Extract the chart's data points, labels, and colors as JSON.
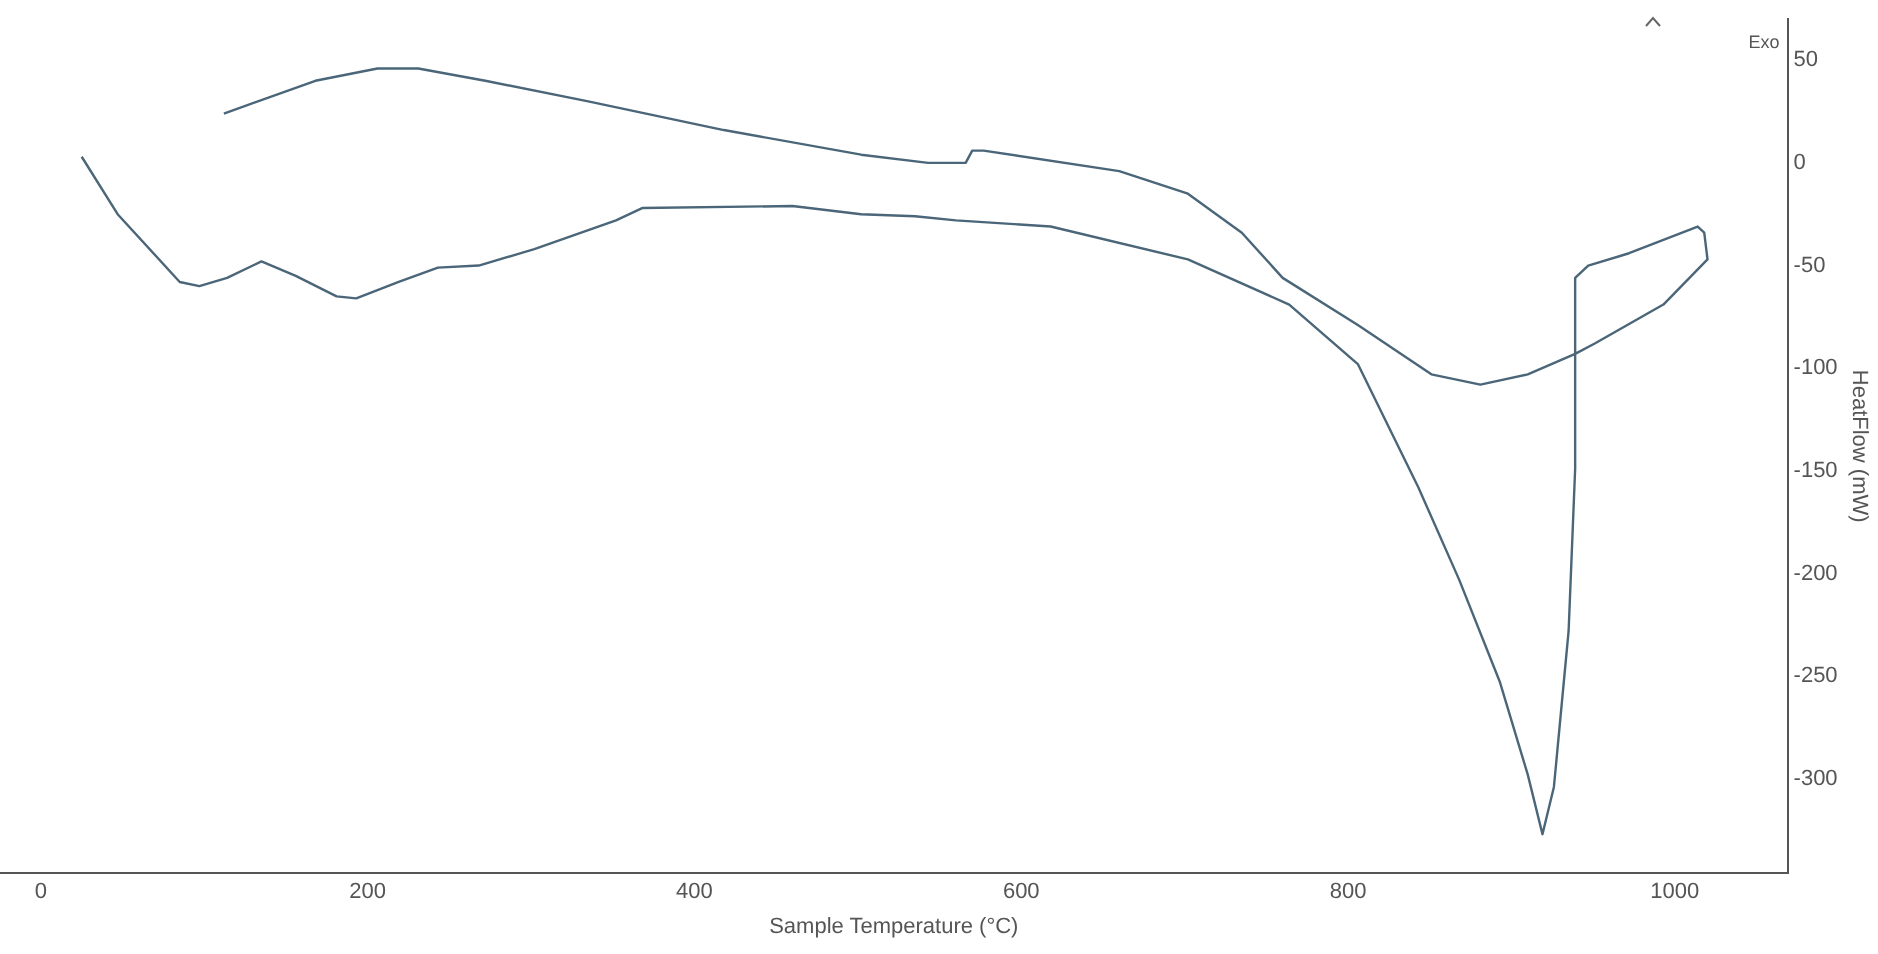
{
  "chart_data": {
    "type": "line",
    "xlabel": "Sample Temperature (°C)",
    "ylabel": "HeatFlow (mW)",
    "annotations": [
      "Exo"
    ],
    "xlim": [
      -25,
      1069
    ],
    "ylim": [
      -346,
      70
    ],
    "xticks": [
      0,
      200,
      400,
      600,
      800,
      1000
    ],
    "yticks": [
      50,
      0,
      -50,
      -100,
      -150,
      -200,
      -250,
      -300
    ],
    "grid": false,
    "legend": false,
    "marker": "none",
    "line_style": "solid",
    "series": [
      {
        "color": "#4a6678",
        "x": [
          25,
          47,
          85,
          97,
          114,
          135,
          156,
          181,
          193,
          219,
          243,
          268,
          302,
          352,
          368,
          460,
          502,
          535,
          560,
          618,
          702,
          764,
          806,
          843,
          868,
          893,
          910,
          919,
          926,
          935,
          939,
          939,
          947,
          972,
          1014,
          1018,
          1020,
          993,
          951,
          939,
          910,
          881,
          851,
          806,
          760,
          735,
          702,
          660,
          577,
          570,
          566,
          543,
          502,
          418,
          335,
          272,
          231,
          206,
          168,
          112
        ],
        "values": [
          3,
          -25,
          -58,
          -60,
          -56,
          -48,
          -55,
          -65,
          -66,
          -58,
          -51,
          -50,
          -42,
          -28,
          -22,
          -21,
          -25,
          -26,
          -28,
          -31,
          -47,
          -69,
          -98,
          -158,
          -203,
          -253,
          -298,
          -327,
          -304,
          -228,
          -149,
          -56,
          -50,
          -44,
          -31,
          -34,
          -47,
          -69,
          -88,
          -93,
          -103,
          -108,
          -103,
          -79,
          -56,
          -34,
          -15,
          -4,
          6,
          6,
          0,
          0,
          4,
          16,
          30,
          40,
          46,
          46,
          40,
          24
        ]
      }
    ]
  }
}
